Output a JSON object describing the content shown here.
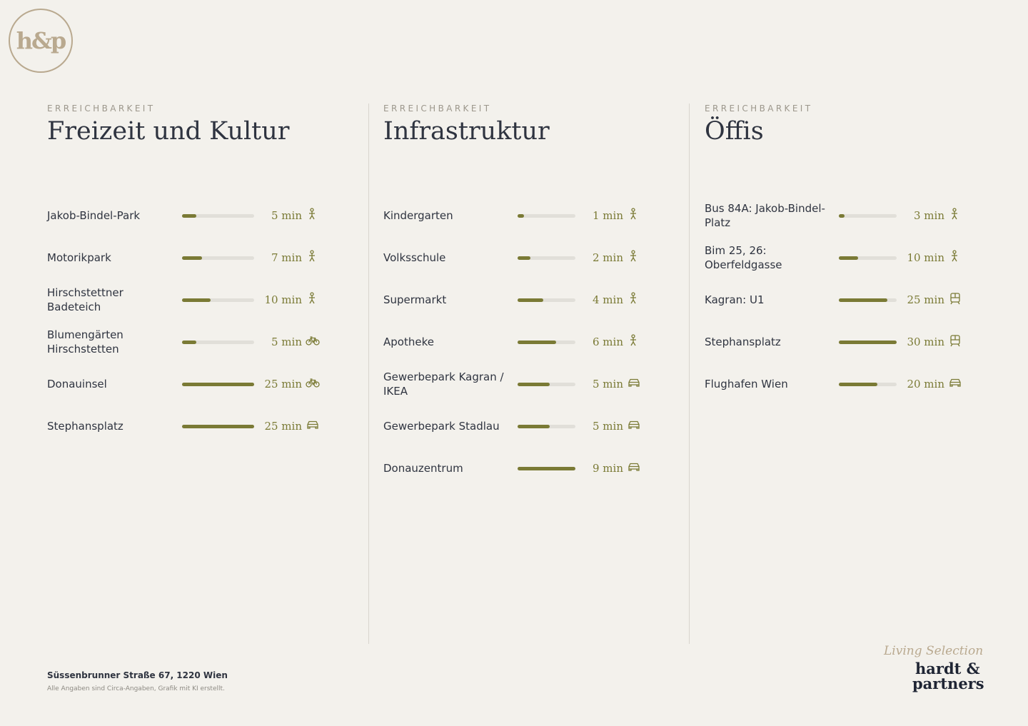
{
  "logo": "h&p",
  "columns": [
    {
      "eyebrow": "ERREICHBARKEIT",
      "title": "Freizeit und Kultur",
      "items": [
        {
          "name": "Jakob-Bindel-Park",
          "minutes": 5,
          "time_label": "5 min",
          "mode": "walk"
        },
        {
          "name": "Motorikpark",
          "minutes": 7,
          "time_label": "7 min",
          "mode": "walk"
        },
        {
          "name": "Hirschstettner Badeteich",
          "minutes": 10,
          "time_label": "10 min",
          "mode": "walk"
        },
        {
          "name": "Blumengärten Hirschstetten",
          "minutes": 5,
          "time_label": "5 min",
          "mode": "bike"
        },
        {
          "name": "Donauinsel",
          "minutes": 25,
          "time_label": "25 min",
          "mode": "bike"
        },
        {
          "name": "Stephansplatz",
          "minutes": 25,
          "time_label": "25 min",
          "mode": "car"
        }
      ]
    },
    {
      "eyebrow": "ERREICHBARKEIT",
      "title": "Infrastruktur",
      "items": [
        {
          "name": "Kindergarten",
          "minutes": 1,
          "time_label": "1 min",
          "mode": "walk"
        },
        {
          "name": "Volksschule",
          "minutes": 2,
          "time_label": "2 min",
          "mode": "walk"
        },
        {
          "name": "Supermarkt",
          "minutes": 4,
          "time_label": "4 min",
          "mode": "walk"
        },
        {
          "name": "Apotheke",
          "minutes": 6,
          "time_label": "6 min",
          "mode": "walk"
        },
        {
          "name": "Gewerbepark Kagran / IKEA",
          "minutes": 5,
          "time_label": "5 min",
          "mode": "car"
        },
        {
          "name": "Gewerbepark Stadlau",
          "minutes": 5,
          "time_label": "5 min",
          "mode": "car"
        },
        {
          "name": "Donauzentrum",
          "minutes": 9,
          "time_label": "9 min",
          "mode": "car"
        }
      ]
    },
    {
      "eyebrow": "ERREICHBARKEIT",
      "title": "Öffis",
      "items": [
        {
          "name": "Bus 84A: Jakob-Bindel-Platz",
          "minutes": 3,
          "time_label": "3 min",
          "mode": "walk"
        },
        {
          "name": "Bim 25, 26: Oberfeldgasse",
          "minutes": 10,
          "time_label": "10 min",
          "mode": "walk"
        },
        {
          "name": "Kagran: U1",
          "minutes": 25,
          "time_label": "25 min",
          "mode": "train"
        },
        {
          "name": "Stephansplatz",
          "minutes": 30,
          "time_label": "30 min",
          "mode": "train"
        },
        {
          "name": "Flughafen Wien",
          "minutes": 20,
          "time_label": "20 min",
          "mode": "car"
        }
      ]
    }
  ],
  "footer": {
    "address": "Süssenbrunner Straße 67, 1220 Wien",
    "note": "Alle Angaben sind Circa-Angaben, Grafik mit KI erstellt."
  },
  "brand": {
    "tagline": "Living Selection",
    "line1": "hardt &",
    "line2": "partners"
  }
}
